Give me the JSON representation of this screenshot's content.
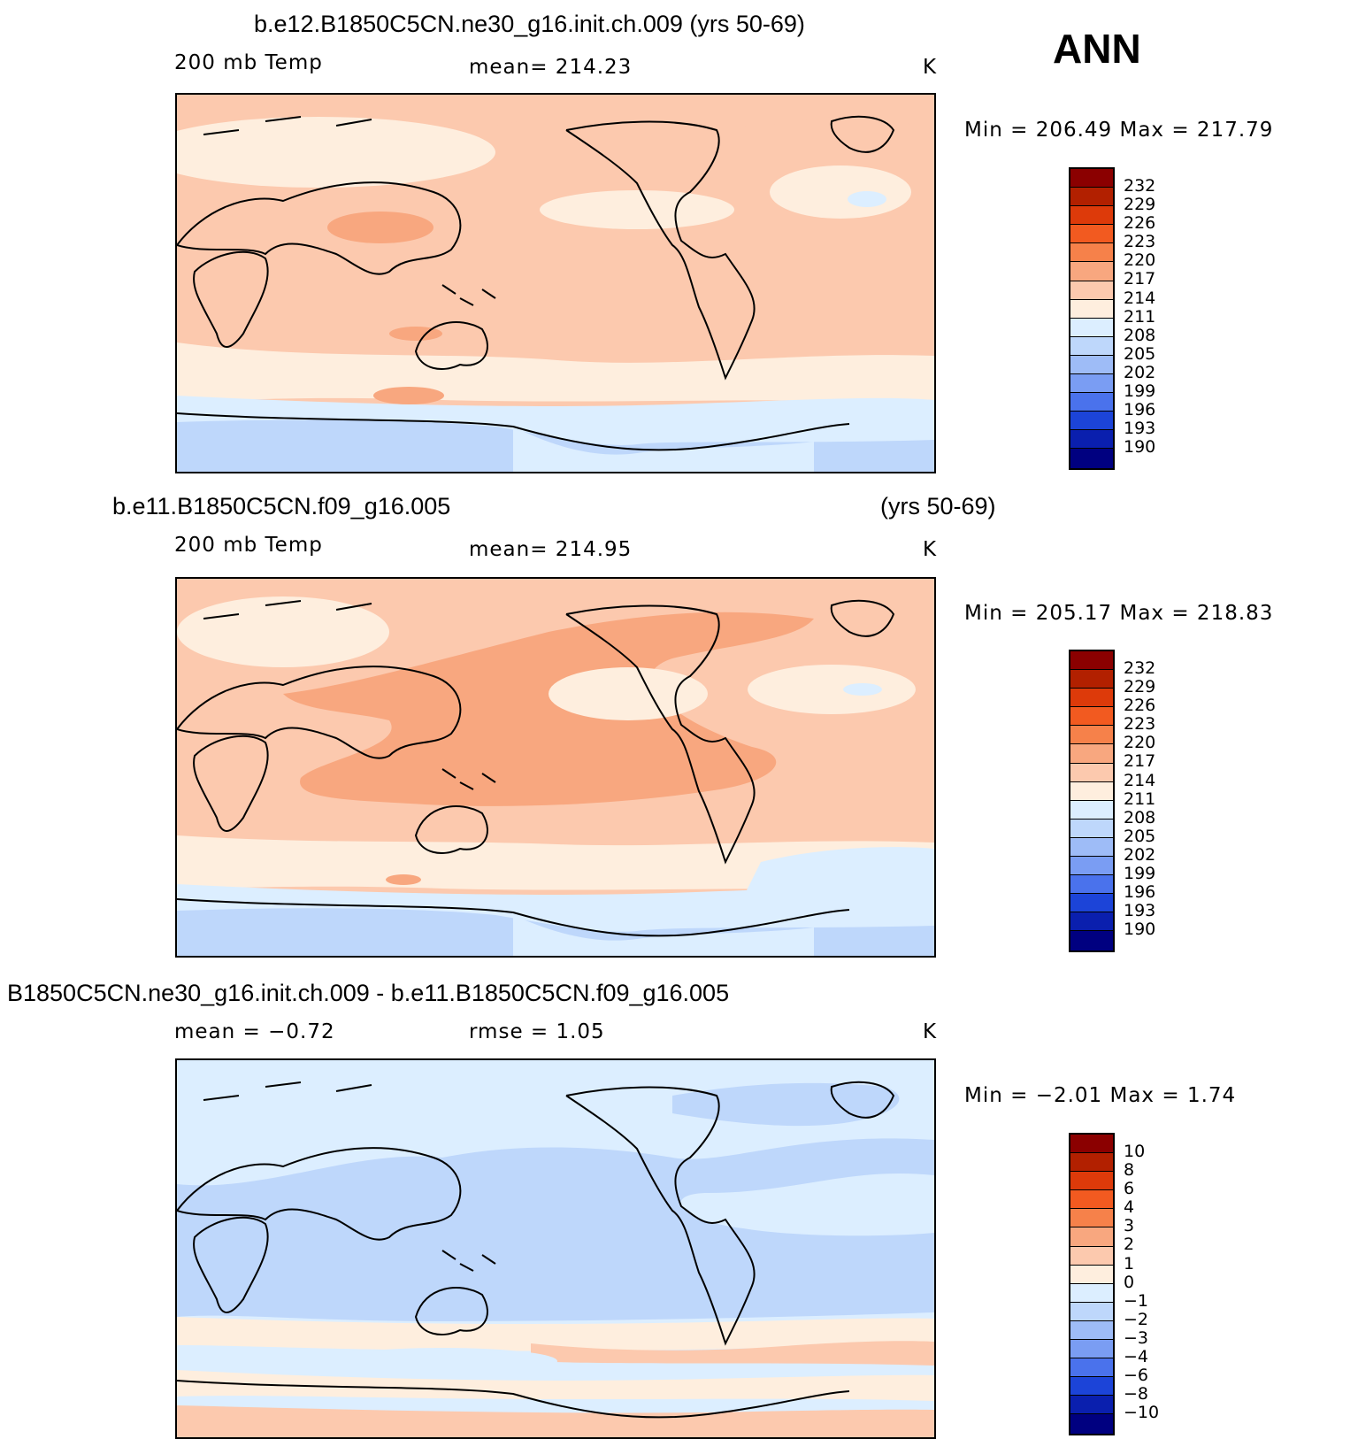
{
  "figure": {
    "season": "ANN"
  },
  "panels": [
    {
      "title": "b.e12.B1850C5CN.ne30_g16.init.ch.009 (yrs 50-69)",
      "title_right": "",
      "variable": "200 mb Temp",
      "stat": "mean=  214.23",
      "units": "K",
      "minmax": "Min  =  206.49  Max  =  217.79"
    },
    {
      "title": "b.e11.B1850C5CN.f09_g16.005",
      "title_right": "(yrs 50-69)",
      "variable": "200 mb Temp",
      "stat": "mean=  214.95",
      "units": "K",
      "minmax": "Min  =  205.17  Max  =  218.83"
    },
    {
      "title": "B1850C5CN.ne30_g16.init.ch.009 - b.e11.B1850C5CN.f09_g16.005",
      "title_right": "",
      "variable": "mean =    −0.72",
      "stat": "rmse =     1.05",
      "units": "K",
      "minmax": "Min  =    −2.01  Max  =     1.74"
    }
  ],
  "colorbars": {
    "absolute": {
      "labels": [
        "232",
        "229",
        "226",
        "223",
        "220",
        "217",
        "214",
        "211",
        "208",
        "205",
        "202",
        "199",
        "196",
        "193",
        "190"
      ],
      "colors": [
        "#8b0000",
        "#b22000",
        "#dd3a0a",
        "#f25a20",
        "#f6814a",
        "#f8a77f",
        "#fcc9ae",
        "#feeede",
        "#dceeff",
        "#bed7fb",
        "#9ebcf7",
        "#7a9df3",
        "#4a72ec",
        "#1c44d8",
        "#0a1fae",
        "#000080"
      ]
    },
    "difference": {
      "labels": [
        "10",
        "8",
        "6",
        "4",
        "3",
        "2",
        "1",
        "0",
        "−1",
        "−2",
        "−3",
        "−4",
        "−6",
        "−8",
        "−10"
      ],
      "colors": [
        "#8b0000",
        "#b22000",
        "#dd3a0a",
        "#f25a20",
        "#f6814a",
        "#f8a77f",
        "#fcc9ae",
        "#feeede",
        "#dceeff",
        "#bed7fb",
        "#9ebcf7",
        "#7a9df3",
        "#4a72ec",
        "#1c44d8",
        "#0a1fae",
        "#000080"
      ]
    }
  }
}
